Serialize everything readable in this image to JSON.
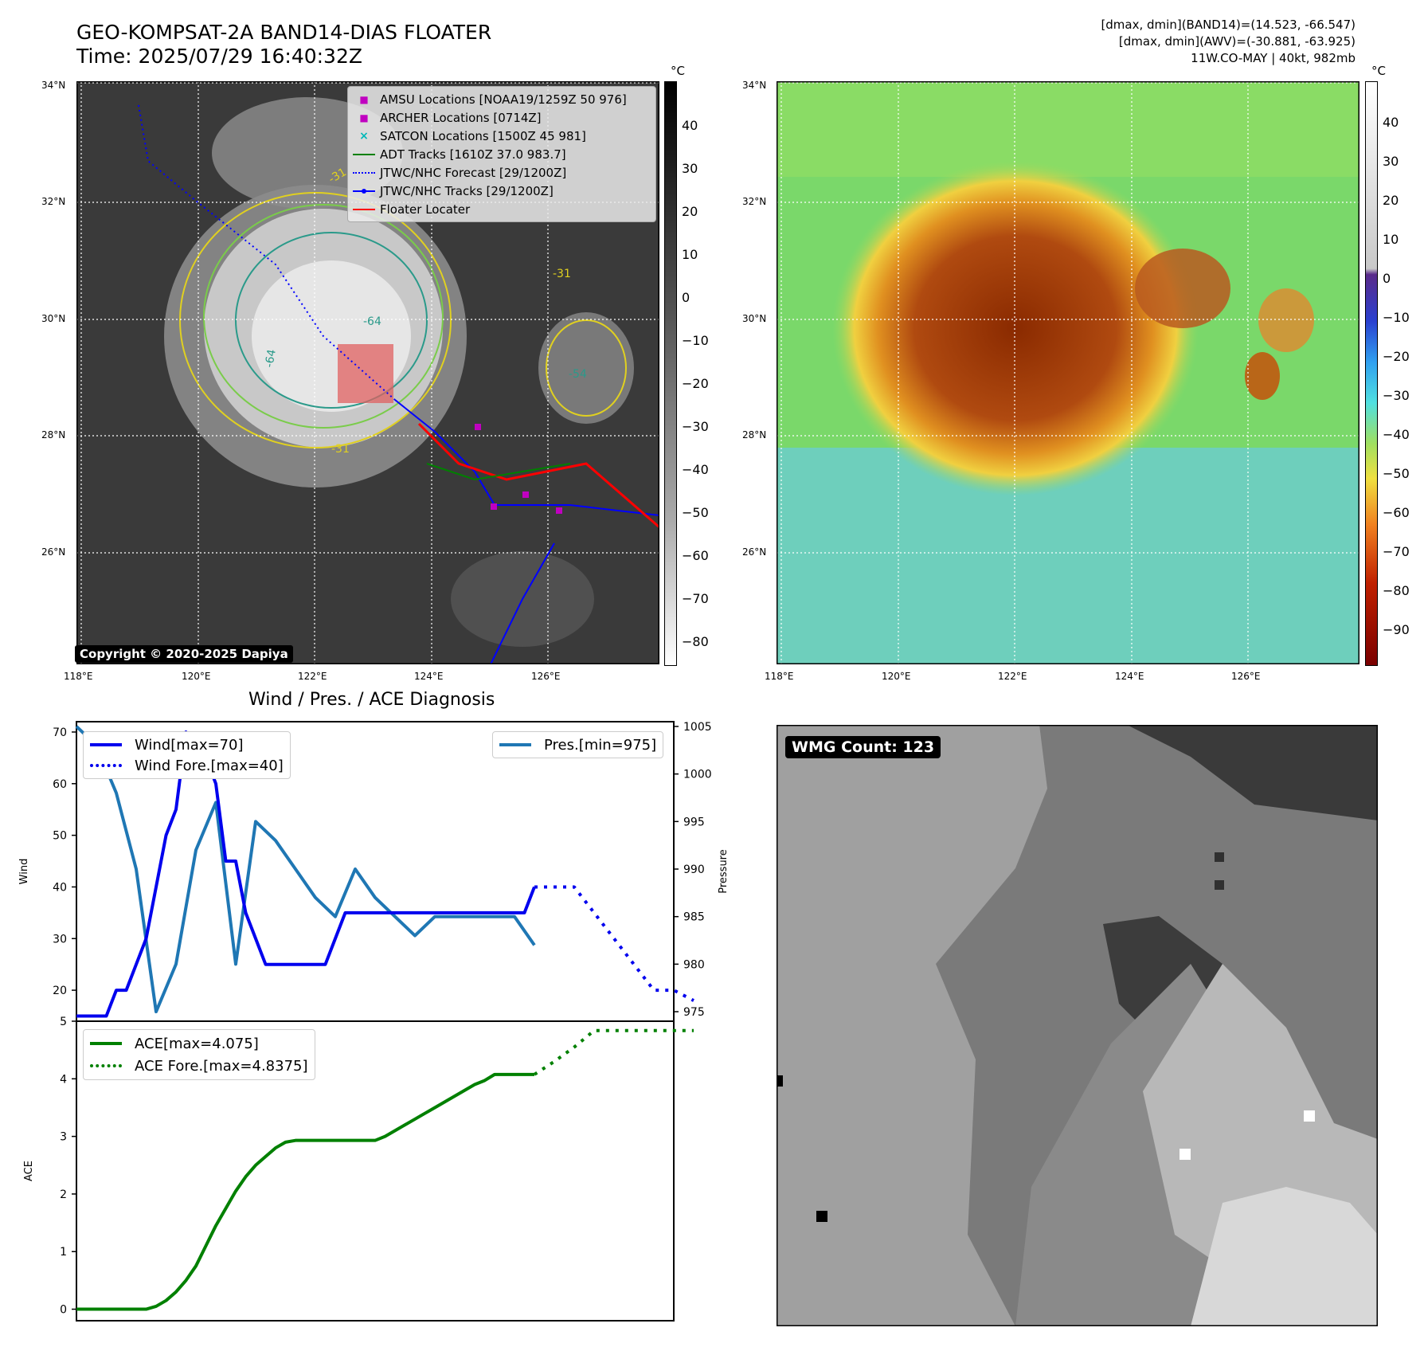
{
  "header": {
    "title_line1": "GEO-KOMPSAT-2A BAND14-DIAS FLOATER",
    "title_line2": "Time: 2025/07/29 16:40:32Z",
    "stats_line1": "[dmax, dmin](BAND14)=(14.523, -66.547)",
    "stats_line2": "[dmax, dmin](AWV)=(-30.881, -63.925)",
    "stats_line3": "11W.CO-MAY | 40kt, 982mb"
  },
  "copyright": "Copyright © 2020-2025 Dapiya",
  "maps": {
    "lat_labels": [
      "34°N",
      "32°N",
      "30°N",
      "28°N",
      "26°N"
    ],
    "lon_labels": [
      "118°E",
      "120°E",
      "122°E",
      "124°E",
      "126°E"
    ],
    "ir_legend": [
      {
        "label": "AMSU Locations [NOAA19/1259Z 50 976]",
        "symbol": "square",
        "color": "#c000c0"
      },
      {
        "label": "ARCHER Locations [0714Z]",
        "symbol": "square",
        "color": "#c000c0"
      },
      {
        "label": "SATCON Locations [1500Z 45 981]",
        "symbol": "x",
        "color": "#00b8b8"
      },
      {
        "label": "ADT Tracks [1610Z 37.0 983.7]",
        "symbol": "line",
        "color": "#008000"
      },
      {
        "label": "JTWC/NHC Forecast [29/1200Z]",
        "symbol": "dotted",
        "color": "#0000ff"
      },
      {
        "label": "JTWC/NHC Tracks [29/1200Z]",
        "symbol": "line-dot",
        "color": "#0000ff"
      },
      {
        "label": "Floater Locater",
        "symbol": "line",
        "color": "#ff0000"
      }
    ],
    "contour_labels": [
      "-31",
      "-31",
      "-31",
      "-54",
      "-54",
      "-64",
      "-64",
      "-64",
      "-31"
    ],
    "gray_colorbar": {
      "unit": "°C",
      "ticks": [
        "40",
        "30",
        "20",
        "10",
        "0",
        "−10",
        "−20",
        "−30",
        "−40",
        "−50",
        "−60",
        "−70",
        "−80"
      ]
    },
    "color_colorbar": {
      "unit": "°C",
      "ticks": [
        "40",
        "30",
        "20",
        "10",
        "0",
        "−10",
        "−20",
        "−30",
        "−40",
        "−50",
        "−60",
        "−70",
        "−80",
        "−90"
      ]
    },
    "colors": {
      "ir_background": "#3a3a3a",
      "ir_cloud": "#e0e0e0",
      "bt_warm": "#7ad86a",
      "bt_cold": "#a83a00",
      "bt_cool": "#55c8ee"
    }
  },
  "wmg": {
    "label": "WMG Count: 123"
  },
  "chart_data": [
    {
      "type": "line",
      "title": "Wind / Pres. / ACE Diagnosis",
      "ylabel": "Wind",
      "y2label": "Pressure",
      "ylim": [
        14,
        72
      ],
      "y2lim": [
        974,
        1005.5
      ],
      "yticks": [
        "70",
        "60",
        "50",
        "40",
        "30",
        "20"
      ],
      "y2ticks": [
        "1005",
        "1000",
        "995",
        "990",
        "985",
        "980",
        "975"
      ],
      "xlim": [
        0,
        60
      ],
      "series": [
        {
          "name": "Wind[max=70]",
          "color": "#0000ee",
          "style": "solid",
          "x": [
            0,
            2,
            3,
            4,
            5,
            6,
            7,
            8,
            9,
            10,
            11,
            12,
            13,
            14,
            15,
            16,
            17,
            18,
            19,
            20,
            21,
            22,
            23,
            24,
            25,
            26,
            27,
            28,
            29,
            30,
            31,
            32,
            33,
            34,
            35,
            36,
            37,
            38,
            39,
            40,
            41,
            42,
            43,
            44,
            45,
            46
          ],
          "y": [
            15,
            15,
            15,
            20,
            20,
            25,
            30,
            40,
            50,
            55,
            70,
            65,
            65,
            60,
            45,
            45,
            35,
            30,
            25,
            25,
            25,
            25,
            25,
            25,
            25,
            30,
            35,
            35,
            35,
            35,
            35,
            35,
            35,
            35,
            35,
            35,
            35,
            35,
            35,
            35,
            35,
            35,
            35,
            35,
            35,
            40
          ]
        },
        {
          "name": "Wind Fore.[max=40]",
          "color": "#0000ee",
          "style": "dotted",
          "x": [
            46,
            48,
            50,
            52,
            54,
            56,
            58,
            60,
            62
          ],
          "y": [
            40,
            40,
            40,
            35,
            30,
            25,
            20,
            20,
            18
          ]
        },
        {
          "name": "Pres.[min=975]",
          "color": "#1f77b4",
          "style": "solid",
          "x": [
            0,
            2,
            4,
            6,
            8,
            10,
            12,
            14,
            16,
            18,
            20,
            22,
            24,
            26,
            28,
            30,
            32,
            34,
            36,
            38,
            40,
            42,
            44,
            46
          ],
          "y": [
            1005,
            1003,
            998,
            990,
            975,
            980,
            992,
            997,
            980,
            995,
            993,
            990,
            987,
            985,
            990,
            987,
            985,
            983,
            985,
            985,
            985,
            985,
            985,
            982
          ]
        }
      ]
    },
    {
      "type": "line",
      "ylabel": "ACE",
      "ylim": [
        -0.2,
        5
      ],
      "yticks": [
        "5",
        "4",
        "3",
        "2",
        "1",
        "0"
      ],
      "xlim": [
        0,
        60
      ],
      "series": [
        {
          "name": "ACE[max=4.075]",
          "color": "#008000",
          "style": "solid",
          "x": [
            0,
            3,
            6,
            7,
            8,
            9,
            10,
            11,
            12,
            13,
            14,
            15,
            16,
            17,
            18,
            19,
            20,
            21,
            22,
            23,
            24,
            25,
            26,
            27,
            28,
            29,
            30,
            31,
            32,
            33,
            34,
            35,
            36,
            37,
            38,
            39,
            40,
            41,
            42,
            43,
            44,
            45,
            46
          ],
          "y": [
            0,
            0,
            0,
            0,
            0.05,
            0.15,
            0.3,
            0.5,
            0.75,
            1.1,
            1.45,
            1.75,
            2.05,
            2.3,
            2.5,
            2.65,
            2.8,
            2.9,
            2.93,
            2.93,
            2.93,
            2.93,
            2.93,
            2.93,
            2.93,
            2.93,
            2.93,
            3.0,
            3.1,
            3.2,
            3.3,
            3.4,
            3.5,
            3.6,
            3.7,
            3.8,
            3.9,
            3.97,
            4.075,
            4.075,
            4.075,
            4.075,
            4.075
          ]
        },
        {
          "name": "ACE Fore.[max=4.8375]",
          "color": "#008000",
          "style": "dotted",
          "x": [
            46,
            48,
            50,
            52,
            54,
            56,
            58,
            60,
            62
          ],
          "y": [
            4.075,
            4.3,
            4.55,
            4.8375,
            4.8375,
            4.8375,
            4.8375,
            4.8375,
            4.8375
          ]
        }
      ]
    }
  ]
}
